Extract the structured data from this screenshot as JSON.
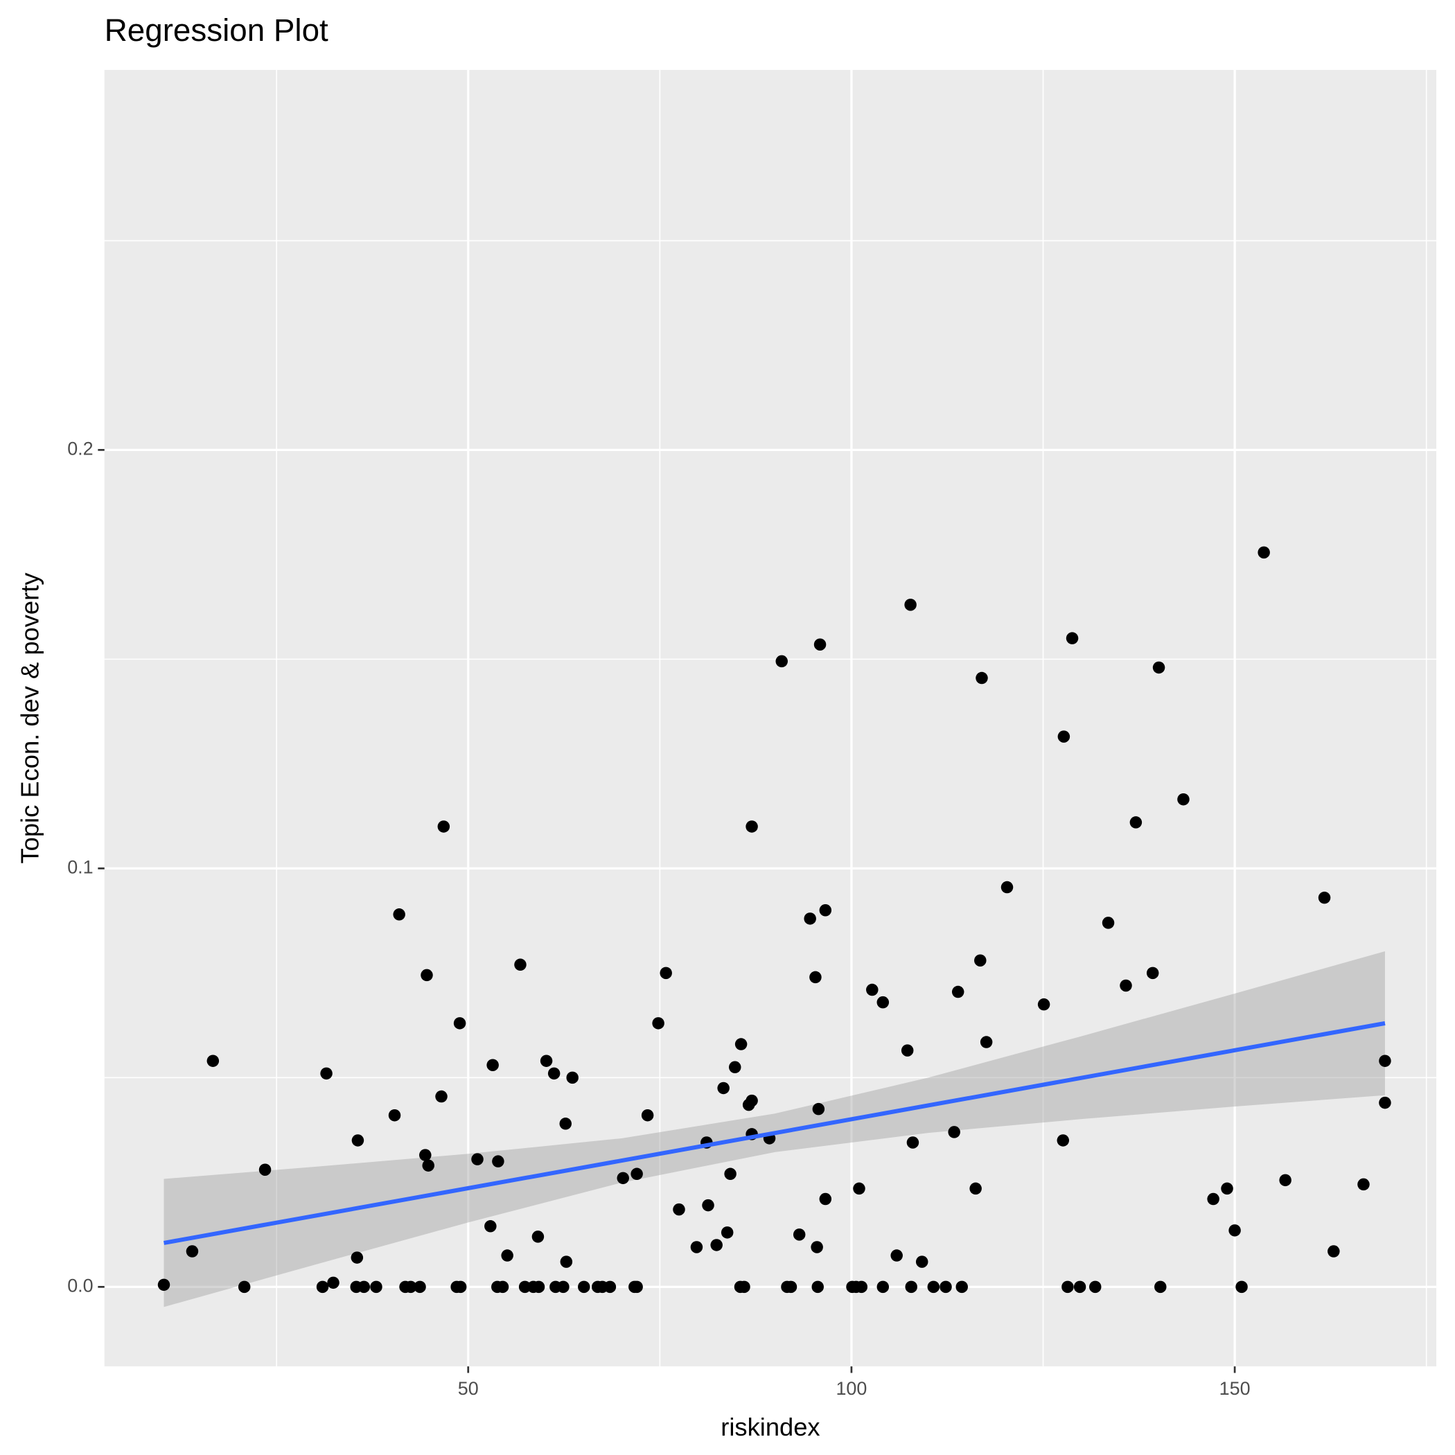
{
  "chart_data": {
    "type": "scatter",
    "title": "Regression Plot",
    "xlabel": "riskindex",
    "ylabel": "Topic Econ. dev & poverty",
    "x": [
      10.3,
      14.0,
      16.7,
      20.8,
      23.5,
      31.0,
      31.5,
      32.4,
      35.5,
      35.6,
      35.4,
      36.4,
      38.0,
      40.4,
      41.0,
      41.8,
      42.5,
      43.7,
      44.4,
      44.6,
      44.8,
      46.5,
      46.8,
      48.5,
      49.0,
      48.9,
      51.2,
      52.9,
      53.2,
      53.8,
      54.5,
      53.9,
      55.1,
      56.8,
      57.4,
      58.5,
      59.2,
      59.1,
      60.2,
      61.2,
      61.4,
      62.4,
      62.7,
      62.8,
      63.6,
      65.1,
      66.9,
      67.5,
      68.5,
      70.2,
      71.7,
      72.0,
      72.0,
      73.4,
      74.8,
      75.8,
      77.5,
      79.8,
      81.1,
      81.3,
      82.4,
      83.3,
      83.8,
      84.2,
      84.8,
      85.6,
      85.5,
      86.0,
      86.6,
      87.0,
      87.0,
      87.0,
      89.3,
      90.9,
      91.6,
      92.1,
      93.2,
      94.6,
      95.3,
      95.5,
      95.6,
      95.7,
      95.9,
      96.6,
      96.6,
      100.1,
      100.6,
      101.3,
      101.0,
      102.7,
      104.1,
      104.1,
      105.9,
      107.3,
      107.7,
      107.8,
      108.0,
      109.2,
      110.7,
      112.3,
      114.4,
      113.4,
      113.9,
      116.2,
      116.8,
      117.0,
      117.6,
      120.3,
      125.1,
      127.6,
      127.7,
      128.2,
      129.8,
      131.8,
      128.8,
      133.5,
      135.8,
      137.1,
      139.3,
      140.1,
      140.3,
      143.3,
      147.2,
      149.0,
      150.0,
      150.9,
      153.8,
      156.6,
      161.7,
      162.9,
      166.8,
      169.6,
      169.6
    ],
    "y": [
      0.0005,
      0.0085,
      0.054,
      0,
      0.028,
      0,
      0.051,
      0.001,
      0.007,
      0.035,
      0,
      0,
      0,
      0.041,
      0.089,
      0,
      0,
      0,
      0.0315,
      0.0745,
      0.029,
      0.0455,
      0.11,
      0,
      0,
      0.063,
      0.0305,
      0.0145,
      0.053,
      0,
      0,
      0.03,
      0.0075,
      0.077,
      0,
      0,
      0,
      0.012,
      0.054,
      0.051,
      0,
      0,
      0.039,
      0.006,
      0.05,
      0,
      0,
      0,
      0,
      0.026,
      0,
      0,
      0.027,
      0.041,
      0.063,
      0.075,
      0.0185,
      0.0095,
      0.0345,
      0.0195,
      0.01,
      0.0475,
      0.013,
      0.027,
      0.0525,
      0.058,
      0,
      0,
      0.0435,
      0.0445,
      0.11,
      0.0365,
      0.0355,
      0.1495,
      0,
      0,
      0.0125,
      0.088,
      0.074,
      0.0095,
      0,
      0.0425,
      0.1535,
      0.09,
      0.021,
      0,
      0,
      0,
      0.0235,
      0.071,
      0.068,
      0,
      0.0075,
      0.0565,
      0.163,
      0,
      0.0345,
      0.006,
      0,
      0,
      0,
      0.037,
      0.0705,
      0.0235,
      0.078,
      0.1455,
      0.0585,
      0.0955,
      0.0675,
      0.035,
      0.1315,
      0,
      0,
      0,
      0.155,
      0.087,
      0.072,
      0.111,
      0.075,
      0.148,
      0,
      0.1165,
      0.021,
      0.0235,
      0.0135,
      0,
      0.1755,
      0.0255,
      0.093,
      0.0085,
      0.0245,
      0.054,
      0.044
    ],
    "color": "#000000",
    "fit": {
      "x": [
        10.3,
        169.6
      ],
      "y": [
        0.0105,
        0.063
      ],
      "color": "#3366ff"
    },
    "band": {
      "x": [
        10.3,
        30,
        50,
        70,
        90,
        110,
        130,
        150,
        169.6
      ],
      "lower": [
        -0.0048,
        0.0053,
        0.0154,
        0.0249,
        0.0322,
        0.0368,
        0.0401,
        0.0431,
        0.0458
      ],
      "upper": [
        0.0258,
        0.0287,
        0.0318,
        0.0355,
        0.0414,
        0.05,
        0.0599,
        0.0701,
        0.0802
      ],
      "color": "#999999"
    },
    "xlim": [
      2.55,
      176.3
    ],
    "ylim": [
      -0.019,
      0.2908
    ],
    "xticks": [
      50,
      100,
      150
    ],
    "yticks": [
      {
        "value": 0,
        "label": "0.0"
      },
      0.1,
      0.2
    ],
    "xminor_ticks": [
      25,
      75,
      125,
      175
    ],
    "yminor_ticks": [
      0.05,
      0.15,
      0.25
    ],
    "grid": true
  }
}
